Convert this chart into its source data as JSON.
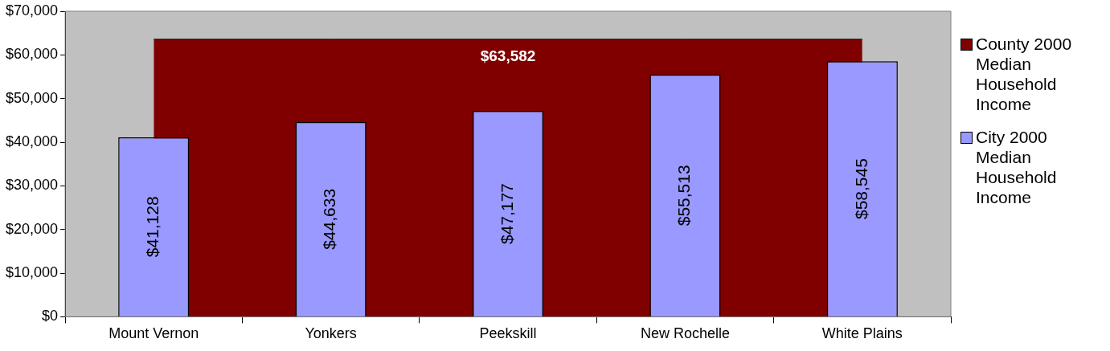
{
  "chart_data": {
    "type": "bar",
    "categories": [
      "Mount Vernon",
      "Yonkers",
      "Peekskill",
      "New Rochelle",
      "White Plains"
    ],
    "series": [
      {
        "name": "County 2000 Median Household Income",
        "type": "area",
        "color": "#800000",
        "values": [
          63582,
          63582,
          63582,
          63582,
          63582
        ],
        "value_labels": [
          null,
          null,
          "$63,582",
          null,
          null
        ]
      },
      {
        "name": "City 2000 Median Household Income",
        "color": "#9999ff",
        "values": [
          41128,
          44633,
          47177,
          55513,
          58545
        ],
        "value_labels": [
          "$41,128",
          "$44,633",
          "$47,177",
          "$55,513",
          "$58,545"
        ]
      }
    ],
    "ylim": [
      0,
      70000
    ],
    "yticks": [
      {
        "value": 0,
        "label": "$0"
      },
      {
        "value": 10000,
        "label": "$10,000"
      },
      {
        "value": 20000,
        "label": "$20,000"
      },
      {
        "value": 30000,
        "label": "$30,000"
      },
      {
        "value": 40000,
        "label": "$40,000"
      },
      {
        "value": 50000,
        "label": "$50,000"
      },
      {
        "value": 60000,
        "label": "$60,000"
      },
      {
        "value": 70000,
        "label": "$70,000"
      }
    ],
    "grid": false,
    "legend": "right"
  }
}
